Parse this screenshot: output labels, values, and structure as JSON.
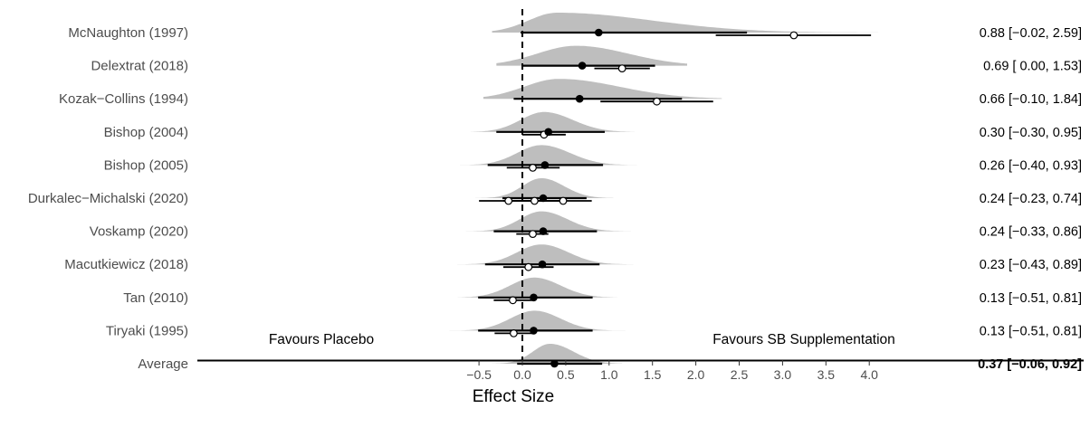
{
  "chart_data": {
    "type": "forest",
    "xlabel": "Effect Size",
    "xlim": [
      -0.9,
      4.1
    ],
    "ticks": [
      -0.5,
      0.0,
      0.5,
      1.0,
      1.5,
      2.0,
      2.5,
      3.0,
      3.5,
      4.0
    ],
    "tick_labels": [
      "−0.5",
      "0.0",
      "0.5",
      "1.0",
      "1.5",
      "2.0",
      "2.5",
      "3.0",
      "3.5",
      "4.0"
    ],
    "reference_line": 0,
    "annotations": {
      "left": "Favours Placebo",
      "right": "Favours SB Supplementation"
    },
    "studies": [
      {
        "name": "McNaughton (1997)",
        "estimate": 0.88,
        "lower": -0.02,
        "upper": 2.59,
        "label": "0.88 [−0.02, 2.59]",
        "density": {
          "mode": 0.4,
          "sd_left": 0.33,
          "sd_right": 1.1,
          "tail_left": -0.35,
          "tail_right": 4.1
        },
        "observed": [
          {
            "x": 3.13,
            "lo": 2.23,
            "hi": 4.02
          }
        ]
      },
      {
        "name": "Delextrat (2018)",
        "estimate": 0.69,
        "lower": 0.0,
        "upper": 1.53,
        "label": "0.69 [ 0.00, 1.53]",
        "density": {
          "mode": 0.62,
          "sd_left": 0.45,
          "sd_right": 0.6,
          "tail_left": -0.3,
          "tail_right": 1.9
        },
        "observed": [
          {
            "x": 1.15,
            "lo": 0.83,
            "hi": 1.47
          }
        ]
      },
      {
        "name": "Kozak−Collins (1994)",
        "estimate": 0.66,
        "lower": -0.1,
        "upper": 1.84,
        "label": "0.66 [−0.10, 1.84]",
        "density": {
          "mode": 0.42,
          "sd_left": 0.4,
          "sd_right": 0.7,
          "tail_left": -0.45,
          "tail_right": 2.3
        },
        "observed": [
          {
            "x": 1.55,
            "lo": 0.9,
            "hi": 2.2
          }
        ]
      },
      {
        "name": "Bishop (2004)",
        "estimate": 0.3,
        "lower": -0.3,
        "upper": 0.95,
        "label": "0.30 [−0.30, 0.95]",
        "density": {
          "mode": 0.25,
          "sd_left": 0.27,
          "sd_right": 0.33,
          "tail_left": -0.62,
          "tail_right": 1.35
        },
        "observed": [
          {
            "x": 0.25,
            "lo": 0.0,
            "hi": 0.5
          }
        ]
      },
      {
        "name": "Bishop (2005)",
        "estimate": 0.26,
        "lower": -0.4,
        "upper": 0.93,
        "label": "0.26 [−0.40, 0.93]",
        "density": {
          "mode": 0.22,
          "sd_left": 0.28,
          "sd_right": 0.33,
          "tail_left": -0.72,
          "tail_right": 1.32
        },
        "observed": [
          {
            "x": 0.12,
            "lo": -0.18,
            "hi": 0.43
          }
        ]
      },
      {
        "name": "Durkalec−Michalski (2020)",
        "estimate": 0.24,
        "lower": -0.23,
        "upper": 0.74,
        "label": "0.24 [−0.23, 0.74]",
        "density": {
          "mode": 0.22,
          "sd_left": 0.22,
          "sd_right": 0.26,
          "tail_left": -0.55,
          "tail_right": 1.05
        },
        "observed": [
          {
            "x": -0.16,
            "lo": -0.5,
            "hi": 0.18
          },
          {
            "x": 0.14,
            "lo": -0.22,
            "hi": 0.5
          },
          {
            "x": 0.47,
            "lo": 0.12,
            "hi": 0.8
          }
        ]
      },
      {
        "name": "Voskamp (2020)",
        "estimate": 0.24,
        "lower": -0.33,
        "upper": 0.86,
        "label": "0.24 [−0.33, 0.86]",
        "density": {
          "mode": 0.22,
          "sd_left": 0.25,
          "sd_right": 0.3,
          "tail_left": -0.65,
          "tail_right": 1.25
        },
        "observed": [
          {
            "x": 0.12,
            "lo": -0.07,
            "hi": 0.3
          }
        ]
      },
      {
        "name": "Macutkiewicz (2018)",
        "estimate": 0.23,
        "lower": -0.43,
        "upper": 0.89,
        "label": "0.23 [−0.43, 0.89]",
        "density": {
          "mode": 0.22,
          "sd_left": 0.28,
          "sd_right": 0.31,
          "tail_left": -0.75,
          "tail_right": 1.28
        },
        "observed": [
          {
            "x": 0.07,
            "lo": -0.22,
            "hi": 0.36
          }
        ]
      },
      {
        "name": "Tan (2010)",
        "estimate": 0.13,
        "lower": -0.51,
        "upper": 0.81,
        "label": "0.13 [−0.51, 0.81]",
        "density": {
          "mode": 0.14,
          "sd_left": 0.28,
          "sd_right": 0.3,
          "tail_left": -0.82,
          "tail_right": 1.15
        },
        "observed": [
          {
            "x": -0.11,
            "lo": -0.33,
            "hi": 0.11
          }
        ]
      },
      {
        "name": "Tiryaki (1995)",
        "estimate": 0.13,
        "lower": -0.51,
        "upper": 0.81,
        "label": "0.13 [−0.51, 0.81]",
        "density": {
          "mode": 0.14,
          "sd_left": 0.28,
          "sd_right": 0.3,
          "tail_left": -0.85,
          "tail_right": 1.25
        },
        "observed": [
          {
            "x": -0.1,
            "lo": -0.32,
            "hi": 0.12
          }
        ]
      },
      {
        "name": "Average",
        "estimate": 0.37,
        "lower": -0.06,
        "upper": 0.92,
        "label": "0.37 [−0.06, 0.92]",
        "bold_label": true,
        "density": {
          "mode": 0.32,
          "sd_left": 0.2,
          "sd_right": 0.27,
          "tail_left": -0.35,
          "tail_right": 1.15
        },
        "observed": []
      }
    ],
    "colors": {
      "density": "#bebebe",
      "ink": "#000000",
      "label": "#4d4d4d"
    }
  }
}
